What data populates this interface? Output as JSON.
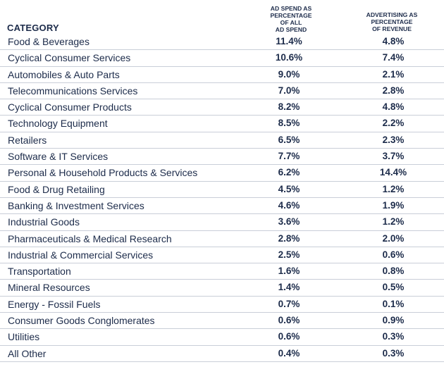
{
  "chart_data": {
    "type": "table",
    "columns": [
      "CATEGORY",
      "AD SPEND AS PERCENTAGE OF ALL AD SPEND",
      "ADVERTISING AS PERCENTAGE OF REVENUE"
    ],
    "header_lines": {
      "col1": [
        "AD SPEND AS",
        "PERCENTAGE",
        "OF ALL",
        "AD SPEND"
      ],
      "col2": [
        "ADVERTISING AS",
        "PERCENTAGE",
        "OF REVENUE"
      ]
    },
    "rows": [
      {
        "category": "Food & Beverages",
        "ad_spend_share": "11.4%",
        "ad_pct_revenue": "4.8%"
      },
      {
        "category": "Cyclical Consumer Services",
        "ad_spend_share": "10.6%",
        "ad_pct_revenue": "7.4%"
      },
      {
        "category": "Automobiles & Auto Parts",
        "ad_spend_share": "9.0%",
        "ad_pct_revenue": "2.1%"
      },
      {
        "category": "Telecommunications Services",
        "ad_spend_share": "7.0%",
        "ad_pct_revenue": "2.8%"
      },
      {
        "category": "Cyclical Consumer Products",
        "ad_spend_share": "8.2%",
        "ad_pct_revenue": "4.8%"
      },
      {
        "category": "Technology Equipment",
        "ad_spend_share": "8.5%",
        "ad_pct_revenue": "2.2%"
      },
      {
        "category": "Retailers",
        "ad_spend_share": "6.5%",
        "ad_pct_revenue": "2.3%"
      },
      {
        "category": "Software & IT Services",
        "ad_spend_share": "7.7%",
        "ad_pct_revenue": "3.7%"
      },
      {
        "category": "Personal & Household Products & Services",
        "ad_spend_share": "6.2%",
        "ad_pct_revenue": "14.4%"
      },
      {
        "category": "Food & Drug Retailing",
        "ad_spend_share": "4.5%",
        "ad_pct_revenue": "1.2%"
      },
      {
        "category": "Banking & Investment Services",
        "ad_spend_share": "4.6%",
        "ad_pct_revenue": "1.9%"
      },
      {
        "category": "Industrial Goods",
        "ad_spend_share": "3.6%",
        "ad_pct_revenue": "1.2%"
      },
      {
        "category": "Pharmaceuticals & Medical Research",
        "ad_spend_share": "2.8%",
        "ad_pct_revenue": "2.0%"
      },
      {
        "category": "Industrial & Commercial Services",
        "ad_spend_share": "2.5%",
        "ad_pct_revenue": "0.6%"
      },
      {
        "category": "Transportation",
        "ad_spend_share": "1.6%",
        "ad_pct_revenue": "0.8%"
      },
      {
        "category": "Mineral Resources",
        "ad_spend_share": "1.4%",
        "ad_pct_revenue": "0.5%"
      },
      {
        "category": "Energy - Fossil Fuels",
        "ad_spend_share": "0.7%",
        "ad_pct_revenue": "0.1%"
      },
      {
        "category": "Consumer Goods Conglomerates",
        "ad_spend_share": "0.6%",
        "ad_pct_revenue": "0.9%"
      },
      {
        "category": "Utilities",
        "ad_spend_share": "0.6%",
        "ad_pct_revenue": "0.3%"
      },
      {
        "category": "All Other",
        "ad_spend_share": "0.4%",
        "ad_pct_revenue": "0.3%"
      }
    ],
    "colors": {
      "text": "#1c2b4a",
      "divider": "#c9ced8",
      "background": "#ffffff"
    }
  }
}
